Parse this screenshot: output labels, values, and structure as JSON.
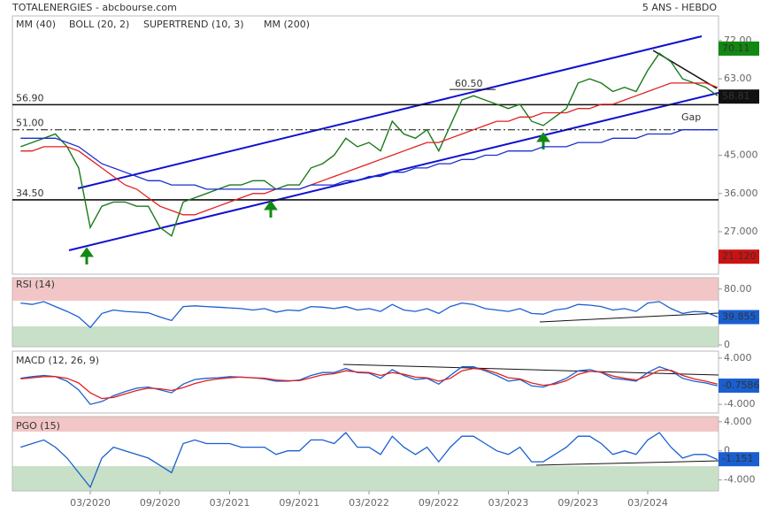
{
  "header": {
    "title": "TOTALENERGIES - abcbourse.com",
    "period": "5 ANS - HEBDO"
  },
  "chart_data": [
    {
      "type": "line",
      "legend": [
        {
          "name": "MM (40)",
          "color": "#e02020"
        },
        {
          "name": "BOLL (20, 2)",
          "color": "#f0a050"
        },
        {
          "name": "SUPERTREND (10, 3)",
          "color": "#c00000"
        },
        {
          "name": "MM (200)",
          "color": "#1a2fd0"
        }
      ],
      "categories": [
        null,
        null,
        null,
        null,
        null,
        null,
        "03/2020",
        null,
        null,
        null,
        null,
        null,
        "09/2020",
        null,
        null,
        null,
        null,
        null,
        "03/2021",
        null,
        null,
        null,
        null,
        null,
        "09/2021",
        null,
        null,
        null,
        null,
        null,
        "03/2022",
        null,
        null,
        null,
        null,
        null,
        "09/2022",
        null,
        null,
        null,
        null,
        null,
        "03/2023",
        null,
        null,
        null,
        null,
        null,
        "09/2023",
        null,
        null,
        null,
        null,
        null,
        "03/2024",
        null,
        null,
        null,
        null,
        null,
        null
      ],
      "ylim": [
        17,
        77.8
      ],
      "yticks": [
        {
          "value": 27,
          "label": "27.000"
        },
        {
          "value": 36,
          "label": "36.000"
        },
        {
          "value": 45,
          "label": "45.000"
        },
        {
          "value": 63,
          "label": "63.00"
        },
        {
          "value": 72,
          "label": "72.00"
        }
      ],
      "series": [
        {
          "color": "#1b7a1b",
          "values": [
            47,
            48,
            49,
            50,
            47,
            42,
            28,
            33,
            34,
            34,
            33,
            33,
            28,
            26,
            34,
            35,
            36,
            37,
            38,
            38,
            39,
            39,
            37,
            38,
            38,
            42,
            43,
            45,
            49,
            47,
            48,
            46,
            53,
            50,
            49,
            51,
            46,
            52,
            58,
            59,
            58,
            57,
            56,
            57,
            53,
            52,
            54,
            56,
            62,
            63,
            62,
            60,
            61,
            60,
            65,
            69,
            67,
            63,
            62,
            61,
            59
          ]
        },
        {
          "color": "#e02020",
          "values": [
            46,
            46,
            47,
            47,
            47,
            46,
            44,
            42,
            40,
            38,
            37,
            35,
            33,
            32,
            31,
            31,
            32,
            33,
            34,
            35,
            36,
            36,
            37,
            37,
            37,
            38,
            39,
            40,
            41,
            42,
            43,
            44,
            45,
            46,
            47,
            48,
            48,
            49,
            50,
            51,
            52,
            53,
            53,
            54,
            54,
            55,
            55,
            55,
            56,
            56,
            57,
            57,
            58,
            59,
            60,
            61,
            62,
            62,
            62,
            62,
            61
          ]
        },
        {
          "color": "#1a2fd0",
          "values": [
            49,
            49,
            49,
            49,
            48,
            47,
            45,
            43,
            42,
            41,
            40,
            39,
            39,
            38,
            38,
            38,
            37,
            37,
            37,
            37,
            37,
            37,
            37,
            37,
            37,
            38,
            38,
            38,
            39,
            39,
            40,
            40,
            41,
            41,
            42,
            42,
            43,
            43,
            44,
            44,
            45,
            45,
            46,
            46,
            46,
            47,
            47,
            47,
            48,
            48,
            48,
            49,
            49,
            49,
            50,
            50,
            50,
            51,
            51,
            51,
            51
          ]
        }
      ],
      "levels": [
        {
          "value": 56.9,
          "label": "56.90",
          "style": "solid"
        },
        {
          "value": 51,
          "label": "51.00",
          "style": "dashdot"
        },
        {
          "value": 34.5,
          "label": "34.50",
          "style": "solid"
        }
      ],
      "annotations": [
        {
          "text": "60.50",
          "value": 60.5
        },
        {
          "text": "Gap"
        }
      ],
      "last_values": [
        {
          "value": 70.11,
          "label": "70.11",
          "color": "#118811"
        },
        {
          "value": 58.81,
          "label": "58.81",
          "color": "#111111"
        },
        {
          "value": 21.12,
          "label": "21.120",
          "color": "#cc1111"
        }
      ]
    },
    {
      "type": "line",
      "title": "RSI (14)",
      "ylim": [
        0,
        100
      ],
      "yticks": [
        0,
        {
          "value": 80,
          "label": "80.00"
        }
      ],
      "series": [
        {
          "color": "#1a5fd0",
          "values": [
            60,
            58,
            62,
            55,
            48,
            40,
            25,
            45,
            50,
            48,
            47,
            46,
            40,
            35,
            55,
            56,
            55,
            54,
            53,
            52,
            50,
            52,
            47,
            50,
            49,
            55,
            54,
            52,
            55,
            50,
            52,
            48,
            58,
            50,
            48,
            52,
            45,
            55,
            60,
            58,
            52,
            50,
            48,
            52,
            45,
            44,
            50,
            52,
            58,
            57,
            55,
            50,
            52,
            48,
            60,
            62,
            52,
            45,
            48,
            47,
            40
          ]
        }
      ],
      "last_value": {
        "value": 39.855,
        "label": "39.855",
        "color": "#1a5fd0"
      }
    },
    {
      "type": "line",
      "title": "MACD (12, 26, 9)",
      "ylim": [
        -5.5,
        5.2
      ],
      "yticks": [
        {
          "value": -4,
          "label": "-4.000"
        },
        {
          "value": 4,
          "label": "4.000"
        }
      ],
      "series": [
        {
          "color": "#1a5fd0",
          "values": [
            0.5,
            0.8,
            1,
            0.8,
            0,
            -1.5,
            -4,
            -3.5,
            -2.5,
            -1.8,
            -1.2,
            -1,
            -1.5,
            -2,
            -0.5,
            0.3,
            0.5,
            0.6,
            0.8,
            0.7,
            0.6,
            0.4,
            0,
            0,
            0.2,
            1,
            1.5,
            1.5,
            2.2,
            1.5,
            1.4,
            0.5,
            2,
            1,
            0.3,
            0.5,
            -0.5,
            1,
            2.5,
            2.5,
            1.8,
            1,
            0,
            0.3,
            -0.8,
            -1,
            -0.3,
            0.5,
            1.8,
            2,
            1.5,
            0.5,
            0.3,
            0,
            1.5,
            2.5,
            1.8,
            0.5,
            0,
            -0.3,
            -0.8
          ]
        },
        {
          "color": "#e02020",
          "values": [
            0.4,
            0.6,
            0.8,
            0.8,
            0.5,
            -0.3,
            -2,
            -3,
            -2.8,
            -2.2,
            -1.6,
            -1.2,
            -1.3,
            -1.6,
            -1.1,
            -0.4,
            0.1,
            0.4,
            0.6,
            0.7,
            0.6,
            0.5,
            0.2,
            0.1,
            0.1,
            0.6,
            1.1,
            1.3,
            1.8,
            1.6,
            1.5,
            1,
            1.5,
            1.2,
            0.7,
            0.6,
            0,
            0.5,
            1.8,
            2.2,
            2,
            1.4,
            0.6,
            0.4,
            -0.3,
            -0.7,
            -0.5,
            0.1,
            1.2,
            1.7,
            1.6,
            0.9,
            0.5,
            0.2,
            0.9,
            1.9,
            1.9,
            1,
            0.4,
            0,
            -0.5
          ]
        }
      ],
      "last_value": {
        "value": -0.7586,
        "label": "-0.7586",
        "color": "#1a5fd0"
      }
    },
    {
      "type": "line",
      "title": "PGO (15)",
      "ylim": [
        -5.5,
        4.7
      ],
      "yticks": [
        {
          "value": -4,
          "label": "-4.000"
        },
        0,
        {
          "value": 4,
          "label": "4.000"
        }
      ],
      "series": [
        {
          "color": "#1a5fd0",
          "values": [
            0.5,
            1,
            1.5,
            0.5,
            -1,
            -3,
            -5,
            -1,
            0.5,
            0,
            -0.5,
            -1,
            -2,
            -3,
            1,
            1.5,
            1,
            1,
            1,
            0.5,
            0.5,
            0.5,
            -0.5,
            0,
            0,
            1.5,
            1.5,
            1,
            2.5,
            0.5,
            0.5,
            -0.5,
            2,
            0.5,
            -0.5,
            0.5,
            -1.5,
            0.5,
            2,
            2,
            1,
            0,
            -0.5,
            0.5,
            -1.5,
            -1.5,
            -0.5,
            0.5,
            2,
            2,
            1,
            -0.5,
            0,
            -0.5,
            1.5,
            2.5,
            0.5,
            -1,
            -0.5,
            -0.5,
            -1.2
          ]
        }
      ],
      "last_value": {
        "value": -1.151,
        "label": "-1.151",
        "color": "#1a5fd0"
      }
    }
  ]
}
